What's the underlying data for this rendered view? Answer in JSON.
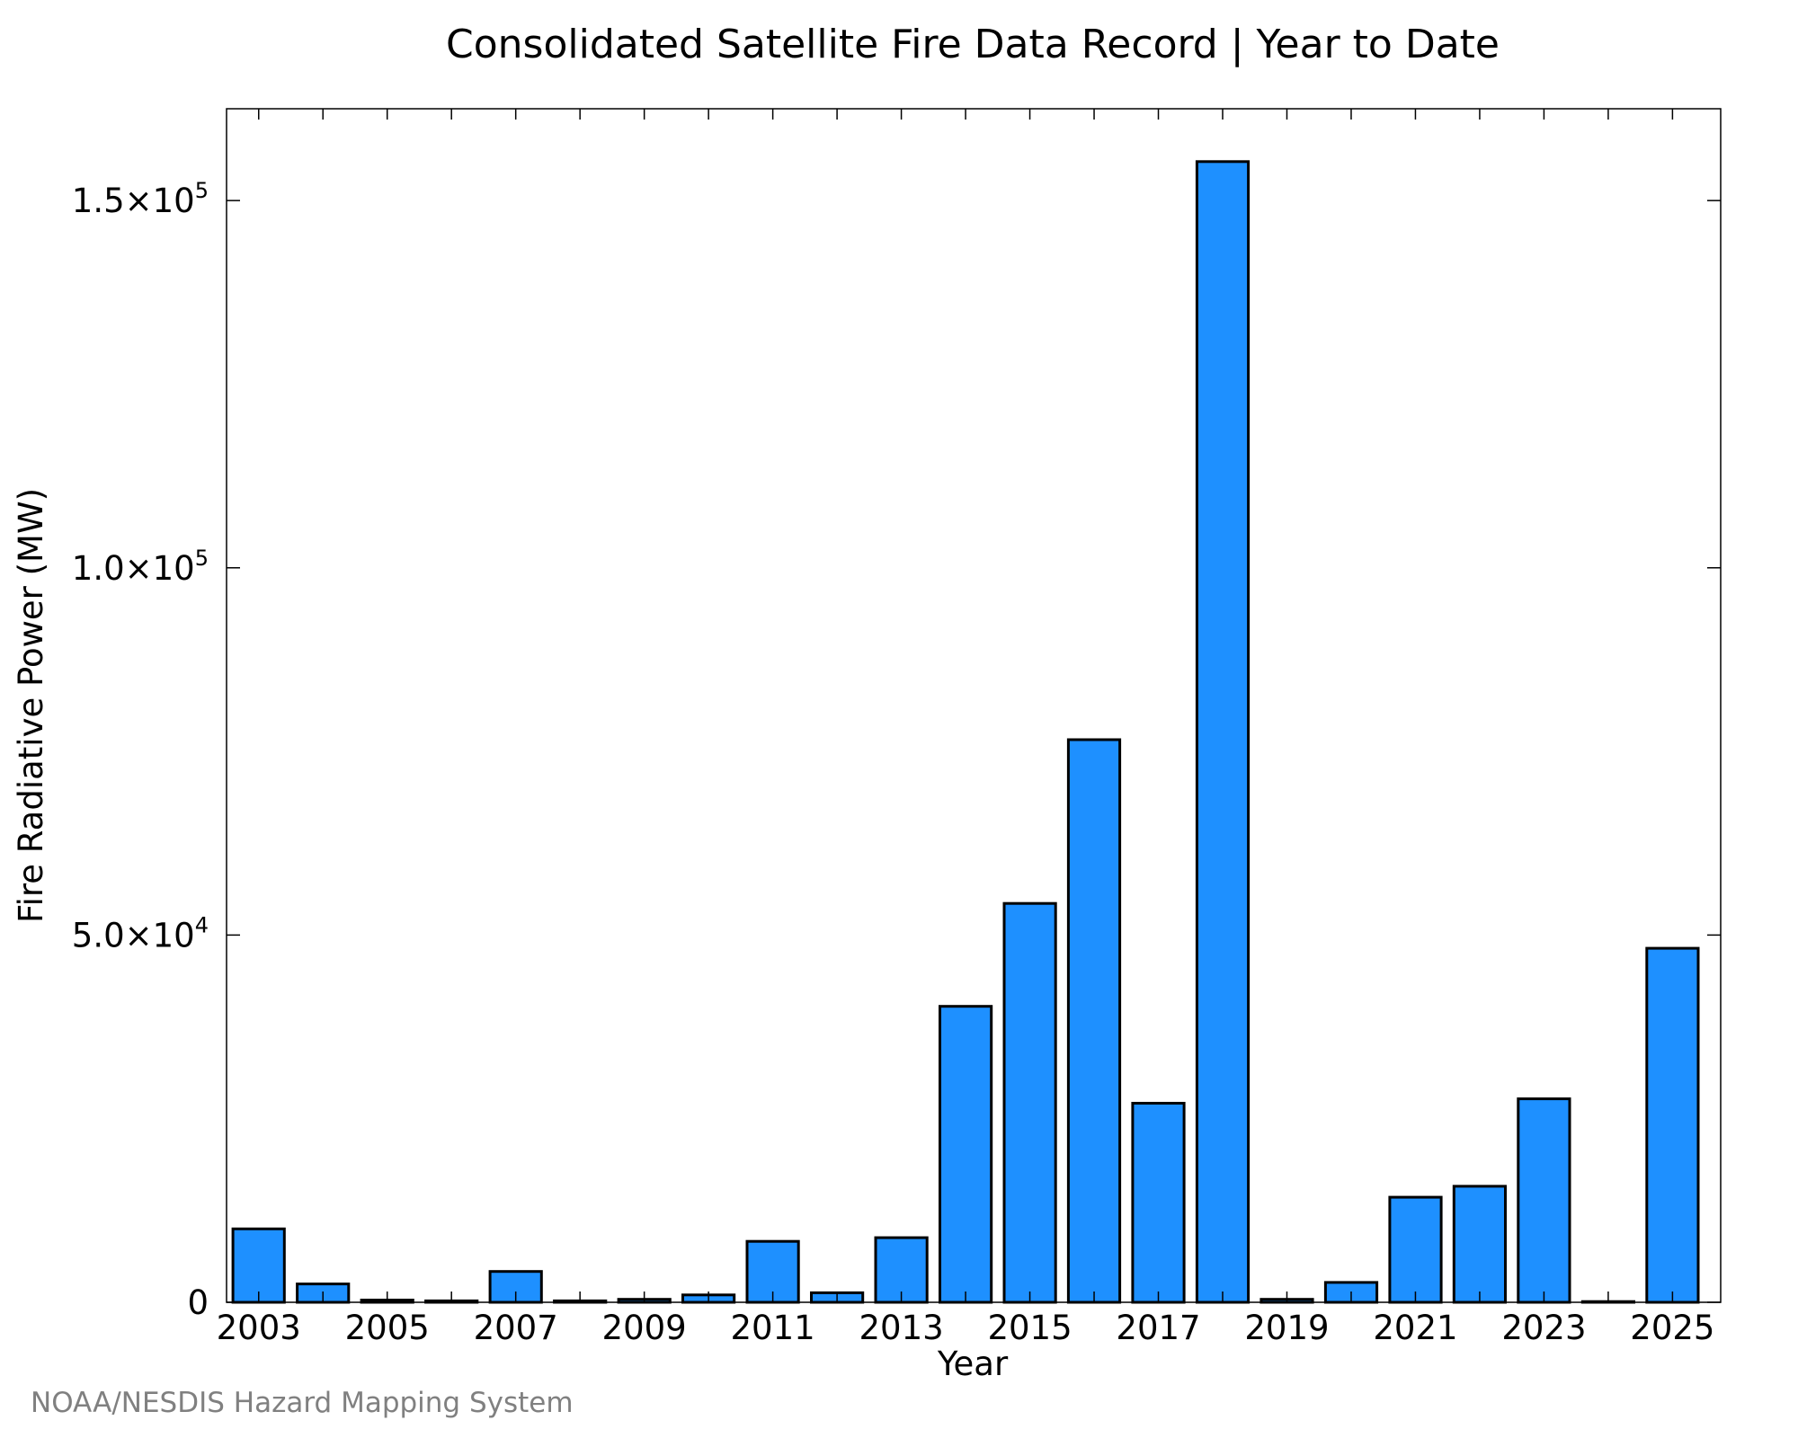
{
  "chart_data": {
    "type": "bar",
    "title": "Consolidated Satellite Fire Data Record | Year to Date",
    "xlabel": "Year",
    "ylabel": "Fire Radiative Power (MW)",
    "credit": "NOAA/NESDIS Hazard Mapping System",
    "ylim": [
      0,
      162500
    ],
    "grid": false,
    "bar_color": "#1E90FF",
    "categories": [
      "2003",
      "2004",
      "2005",
      "2006",
      "2007",
      "2008",
      "2009",
      "2010",
      "2011",
      "2012",
      "2013",
      "2014",
      "2015",
      "2016",
      "2017",
      "2018",
      "2019",
      "2020",
      "2021",
      "2022",
      "2023",
      "2024",
      "2025"
    ],
    "x_tick_labels": [
      "2003",
      "2005",
      "2007",
      "2009",
      "2011",
      "2013",
      "2015",
      "2017",
      "2019",
      "2021",
      "2023",
      "2025"
    ],
    "values": [
      10000,
      2500,
      300,
      200,
      4200,
      200,
      400,
      1000,
      8300,
      1300,
      8800,
      40300,
      54300,
      76600,
      27100,
      155300,
      400,
      2700,
      14300,
      15800,
      27700,
      100,
      48200
    ],
    "y_ticks": [
      {
        "value": 0,
        "mantissa": "0",
        "exponent": ""
      },
      {
        "value": 50000,
        "mantissa": "5.0×10",
        "exponent": "4"
      },
      {
        "value": 100000,
        "mantissa": "1.0×10",
        "exponent": "5"
      },
      {
        "value": 150000,
        "mantissa": "1.5×10",
        "exponent": "5"
      }
    ]
  }
}
